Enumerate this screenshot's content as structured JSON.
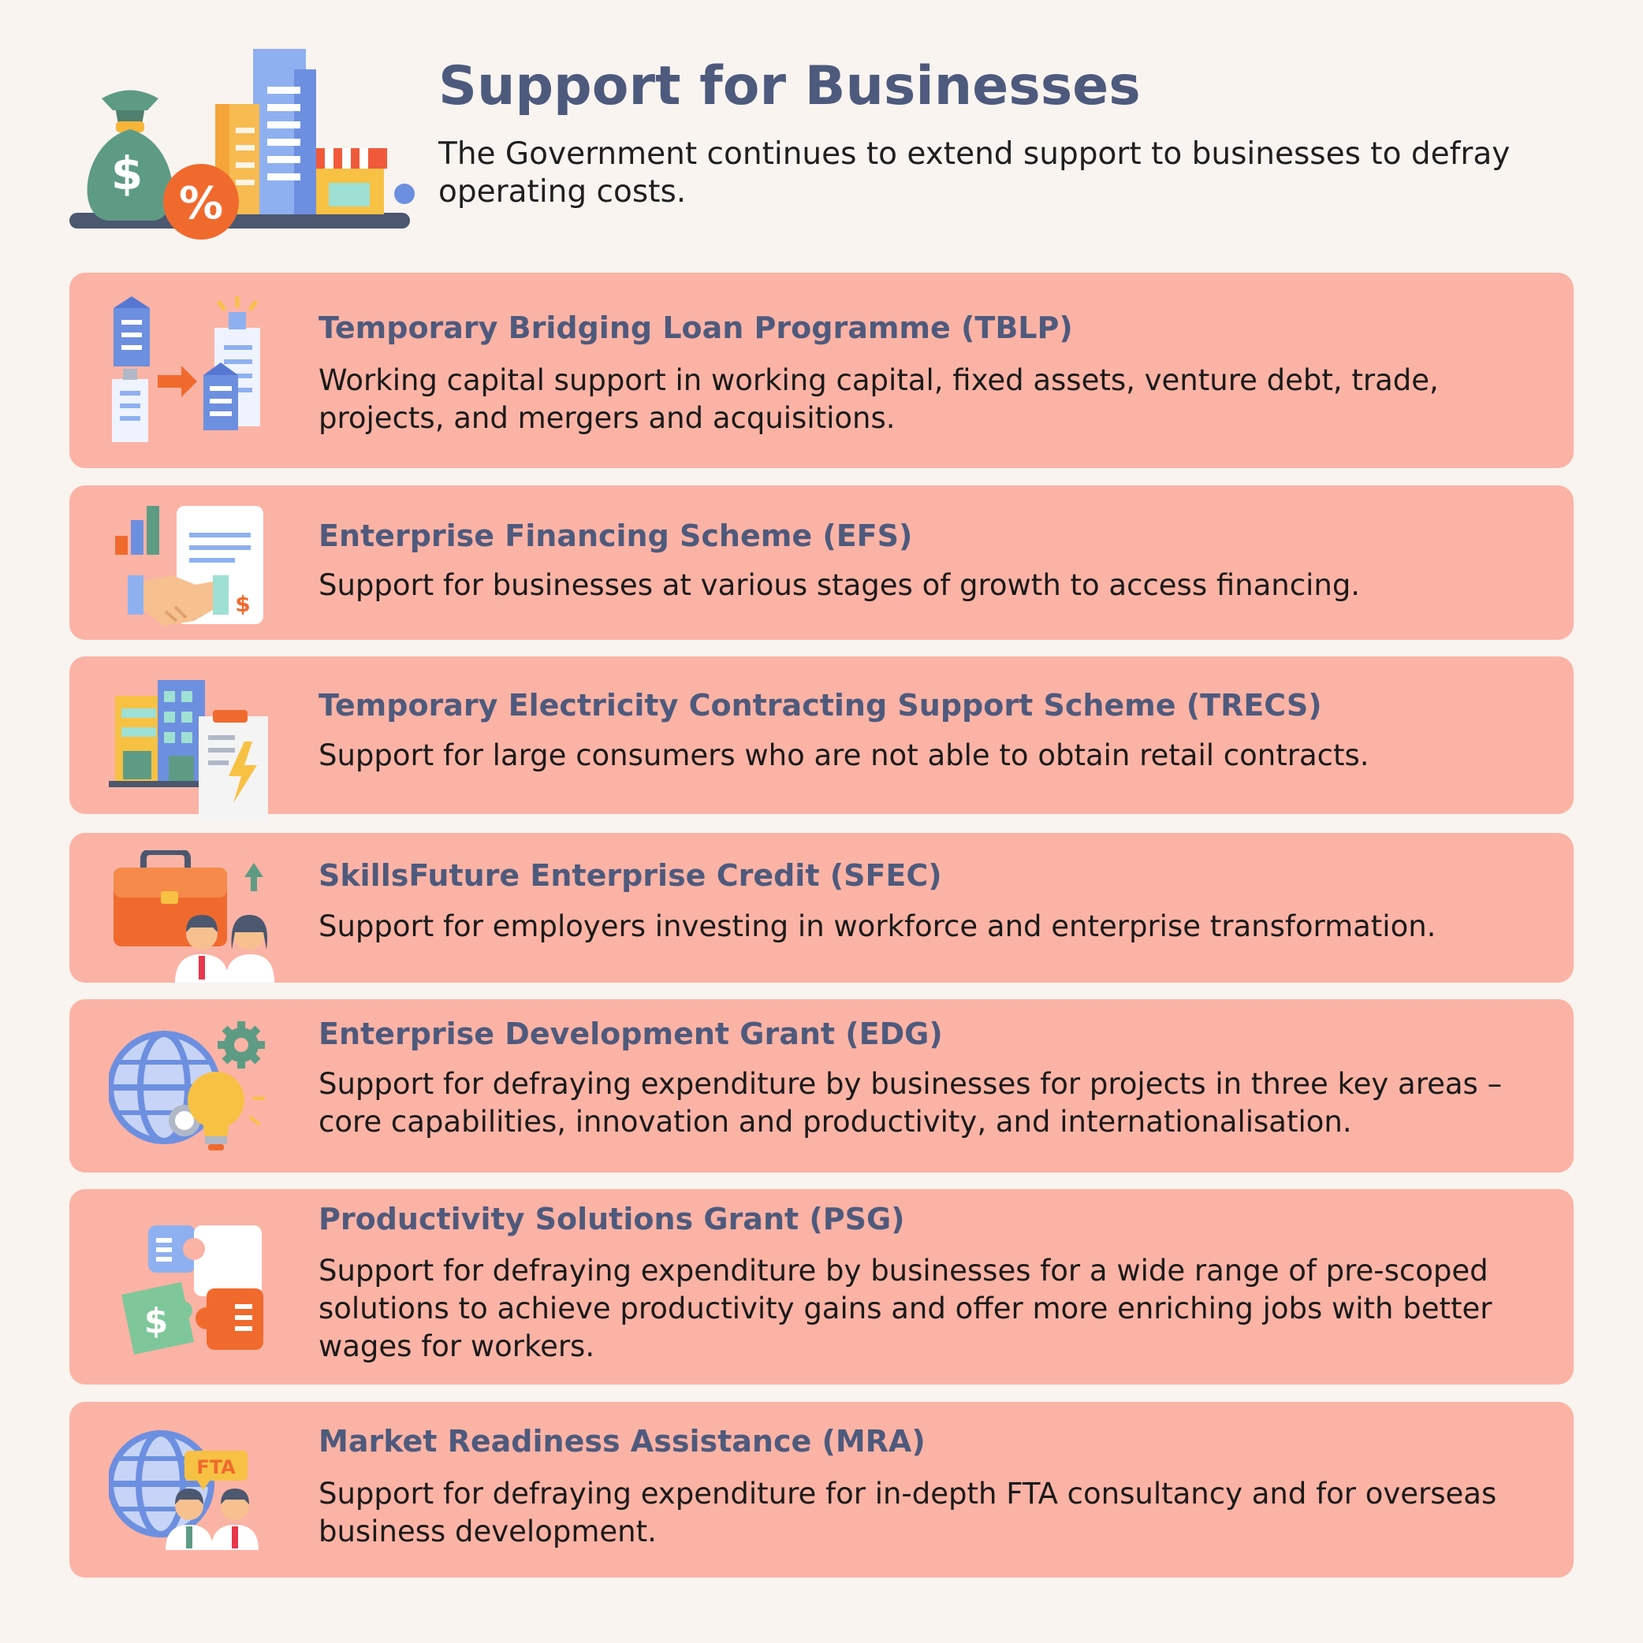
{
  "header": {
    "title": "Support for Businesses",
    "subtitle": "The Government continues to extend support to businesses to defray operating costs.",
    "icon": "money-bag-buildings-shop-icon"
  },
  "colors": {
    "background": "#f9f4f0",
    "card": "#fbb3a5",
    "title": "#4e5a7d"
  },
  "schemes": [
    {
      "title": "Temporary Bridging Loan Programme (TBLP)",
      "description": "Working capital support in working capital, fixed assets, venture debt, trade, projects, and mergers and acquisitions.",
      "icon": "buildings-growth-icon"
    },
    {
      "title": "Enterprise Financing Scheme (EFS)",
      "description": "Support for businesses at various stages of growth to access financing.",
      "icon": "handshake-document-icon"
    },
    {
      "title": "Temporary Electricity Contracting Support Scheme (TRECS)",
      "description": "Support for large consumers who are not able to obtain retail contracts.",
      "icon": "building-electricity-bill-icon"
    },
    {
      "title": "SkillsFuture Enterprise Credit (SFEC)",
      "description": "Support for employers investing in workforce and enterprise transformation.",
      "icon": "briefcase-people-icon"
    },
    {
      "title": "Enterprise Development Grant (EDG)",
      "description": "Support for defraying expenditure by businesses for projects in three key areas – core capabilities, innovation and productivity, and internationalisation.",
      "icon": "globe-gear-lightbulb-icon"
    },
    {
      "title": "Productivity Solutions Grant (PSG)",
      "description": "Support for defraying expenditure by businesses for a wide range of pre-scoped solutions to achieve productivity gains and offer more enriching jobs with better wages for workers.",
      "icon": "puzzle-pieces-icon"
    },
    {
      "title": "Market Readiness Assistance (MRA)",
      "description": "Support for defraying expenditure for in-depth FTA consultancy and for overseas business development.",
      "icon": "globe-fta-people-icon"
    }
  ],
  "fta_label": "FTA"
}
